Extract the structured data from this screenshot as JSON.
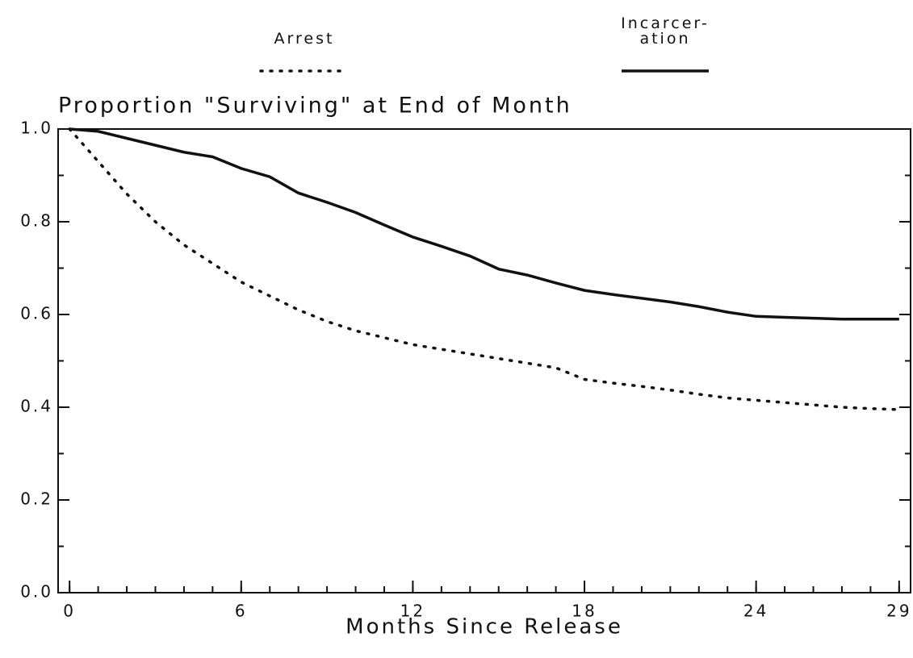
{
  "chart_data": {
    "type": "line",
    "title": "Proportion \"Surviving\" at End of Month",
    "x_label": "Months Since Release",
    "x": [
      0,
      1,
      2,
      3,
      4,
      5,
      6,
      7,
      8,
      9,
      10,
      11,
      12,
      13,
      14,
      15,
      16,
      17,
      18,
      19,
      20,
      21,
      22,
      23,
      24,
      25,
      26,
      27,
      28,
      29
    ],
    "series": [
      {
        "name": "Arrest",
        "color": "#111111",
        "style": "dotted",
        "values": [
          1.0,
          0.93,
          0.86,
          0.8,
          0.75,
          0.71,
          0.67,
          0.64,
          0.61,
          0.585,
          0.565,
          0.55,
          0.535,
          0.525,
          0.515,
          0.505,
          0.495,
          0.485,
          0.46,
          0.452,
          0.445,
          0.437,
          0.428,
          0.42,
          0.415,
          0.41,
          0.405,
          0.4,
          0.397,
          0.395
        ]
      },
      {
        "name": "Incarcer-\nation",
        "color": "#111111",
        "style": "solid",
        "values": [
          1.0,
          0.995,
          0.98,
          0.965,
          0.95,
          0.94,
          0.915,
          0.897,
          0.862,
          0.842,
          0.82,
          0.793,
          0.767,
          0.747,
          0.726,
          0.698,
          0.685,
          0.668,
          0.652,
          0.643,
          0.635,
          0.627,
          0.617,
          0.605,
          0.596,
          0.594,
          0.592,
          0.59,
          0.59,
          0.59
        ]
      }
    ],
    "xlim": [
      -0.4,
      29.4
    ],
    "ylim": [
      0,
      1
    ],
    "xticks": [
      0,
      6,
      12,
      18,
      24,
      29
    ],
    "xminor_ticks": [
      0,
      1,
      2,
      3,
      4,
      5,
      6,
      7,
      8,
      9,
      10,
      11,
      12,
      13,
      14,
      15,
      16,
      17,
      18,
      19,
      20,
      21,
      22,
      23,
      24,
      25,
      26,
      27,
      28,
      29
    ],
    "yticks": [
      {
        "value": 0,
        "label": "0.0"
      },
      {
        "value": 0.2,
        "label": "0.2"
      },
      {
        "value": 0.4,
        "label": "0.4"
      },
      {
        "value": 0.6,
        "label": "0.6"
      },
      {
        "value": 0.8,
        "label": "0.8"
      },
      {
        "value": 1,
        "label": "1.0"
      }
    ],
    "yminor_ticks": [
      0.1,
      0.3,
      0.5,
      0.7,
      0.9
    ],
    "grid": false
  }
}
